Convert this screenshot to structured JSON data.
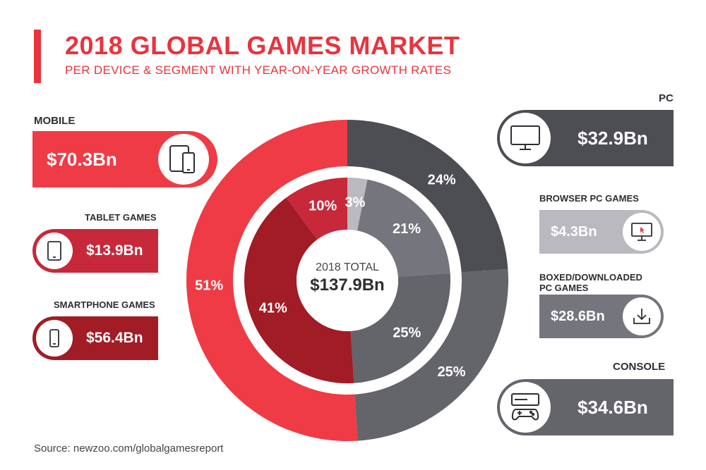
{
  "header": {
    "title": "2018 GLOBAL GAMES MARKET",
    "subtitle": "PER DEVICE & SEGMENT WITH YEAR-ON-YEAR GROWTH RATES"
  },
  "center": {
    "label": "2018 TOTAL",
    "value": "$137.9Bn"
  },
  "mobile": {
    "title": "MOBILE",
    "value": "$70.3Bn",
    "icon": "tablet-phone-icon"
  },
  "tablet": {
    "title": "TABLET GAMES",
    "value": "$13.9Bn",
    "icon": "tablet-icon"
  },
  "smartphone": {
    "title": "SMARTPHONE GAMES",
    "value": "$56.4Bn",
    "icon": "smartphone-icon"
  },
  "pc": {
    "title": "PC",
    "value": "$32.9Bn",
    "icon": "monitor-icon"
  },
  "browser": {
    "title": "BROWSER PC GAMES",
    "value": "$4.3Bn",
    "icon": "monitor-cursor-icon"
  },
  "boxed": {
    "title_line1": "BOXED/DOWNLOADED",
    "title_line2": "PC GAMES",
    "value": "$28.6Bn",
    "icon": "download-icon"
  },
  "console": {
    "title": "CONSOLE",
    "value": "$34.6Bn",
    "icon": "console-icon"
  },
  "source": "Source: newzoo.com/globalgamesreport",
  "colors": {
    "accent": "#e8343e",
    "mobile": "#ef3b45",
    "tablet": "#c7283a",
    "smartphone": "#a11c25",
    "pc": "#4d4d54",
    "browser": "#b9b9bf",
    "boxed": "#75757d",
    "console": "#64646b"
  },
  "chart_data": {
    "type": "pie",
    "total": 137.9,
    "unit": "Bn",
    "outer": [
      {
        "segment": "PC",
        "value": 32.9,
        "percent_label": "24%"
      },
      {
        "segment": "CONSOLE",
        "value": 34.6,
        "percent_label": "25%"
      },
      {
        "segment": "MOBILE",
        "value": 70.3,
        "percent_label": "51%"
      }
    ],
    "inner": [
      {
        "segment": "BROWSER PC GAMES",
        "value": 4.3,
        "percent_label": "3%"
      },
      {
        "segment": "BOXED/DOWNLOADED PC GAMES",
        "value": 28.6,
        "percent_label": "21%"
      },
      {
        "segment": "CONSOLE",
        "value": 34.6,
        "percent_label": "25%"
      },
      {
        "segment": "SMARTPHONE GAMES",
        "value": 56.4,
        "percent_label": "41%"
      },
      {
        "segment": "TABLET GAMES",
        "value": 13.9,
        "percent_label": "10%"
      }
    ]
  }
}
